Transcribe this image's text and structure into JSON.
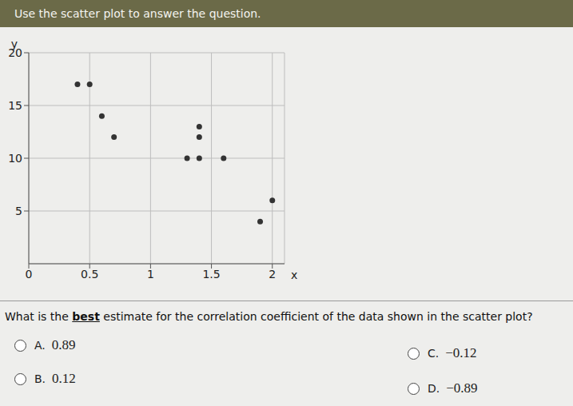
{
  "header": "Use the scatter plot to answer the question.",
  "chart_data": {
    "type": "scatter",
    "x_label": "x",
    "y_label": "y",
    "x": [
      0.4,
      0.5,
      0.6,
      0.7,
      1.3,
      1.4,
      1.4,
      1.4,
      1.6,
      1.9,
      2.0
    ],
    "values": [
      17,
      17,
      14,
      12,
      10,
      10,
      12,
      13,
      10,
      4,
      6
    ],
    "xlim": [
      0,
      2.1
    ],
    "ylim": [
      0,
      20
    ],
    "xticks": [
      0,
      0.5,
      1,
      1.5,
      2
    ],
    "yticks": [
      5,
      10,
      15,
      20
    ],
    "grid": true,
    "color": "#333333",
    "marker": "circle"
  },
  "question": "What is the best estimate for the correlation coefficient of the data shown in the scatter plot?",
  "question_emphasis": "best",
  "options": [
    {
      "letter": "A.",
      "text": "0.89"
    },
    {
      "letter": "B.",
      "text": "0.12"
    },
    {
      "letter": "C.",
      "text": "−0.12"
    },
    {
      "letter": "D.",
      "text": "−0.89"
    }
  ]
}
